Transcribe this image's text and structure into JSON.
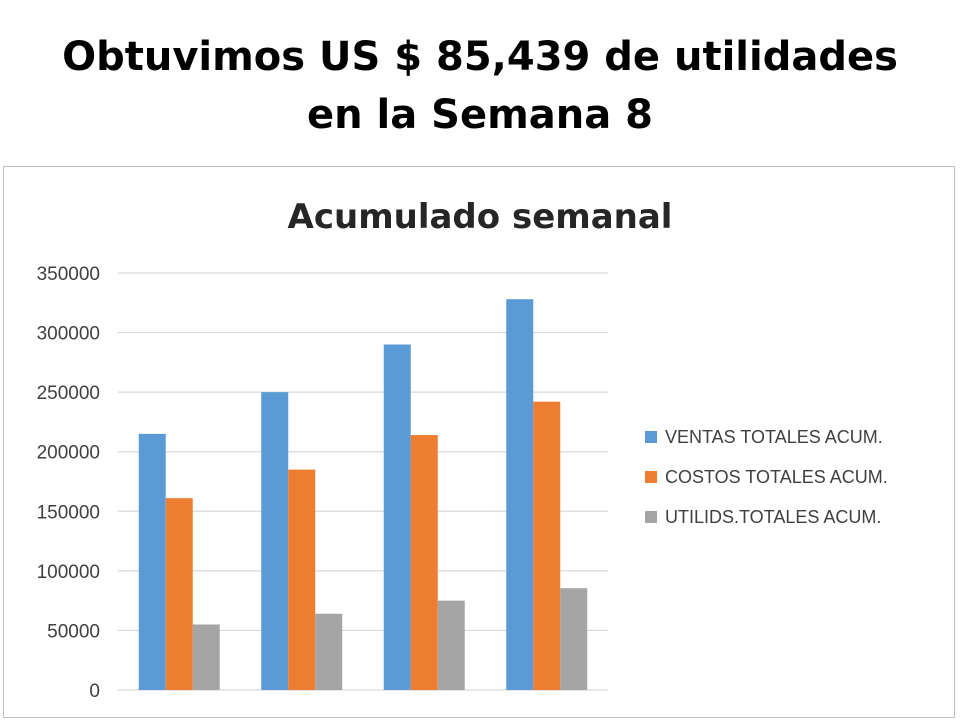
{
  "slide": {
    "title_line1": "Obtuvimos US $ 85,439 de utilidades",
    "title_line2": "en la Semana 8"
  },
  "chart_data": {
    "type": "bar",
    "title": "Acumulado semanal",
    "categories": [
      "",
      "",
      "",
      ""
    ],
    "series": [
      {
        "name": "VENTAS TOTALES ACUM.",
        "color": "#5b9bd5",
        "values": [
          215000,
          250000,
          290000,
          328000
        ]
      },
      {
        "name": "COSTOS TOTALES ACUM.",
        "color": "#ed7d31",
        "values": [
          161000,
          185000,
          214000,
          242000
        ]
      },
      {
        "name": "UTILIDS.TOTALES ACUM.",
        "color": "#a5a5a5",
        "values": [
          55000,
          64000,
          75000,
          85439
        ]
      }
    ],
    "ylim": [
      0,
      350000
    ],
    "yticks": [
      "0",
      "50000",
      "100000",
      "150000",
      "200000",
      "250000",
      "300000",
      "350000"
    ],
    "grid": true,
    "legend_position": "right"
  }
}
